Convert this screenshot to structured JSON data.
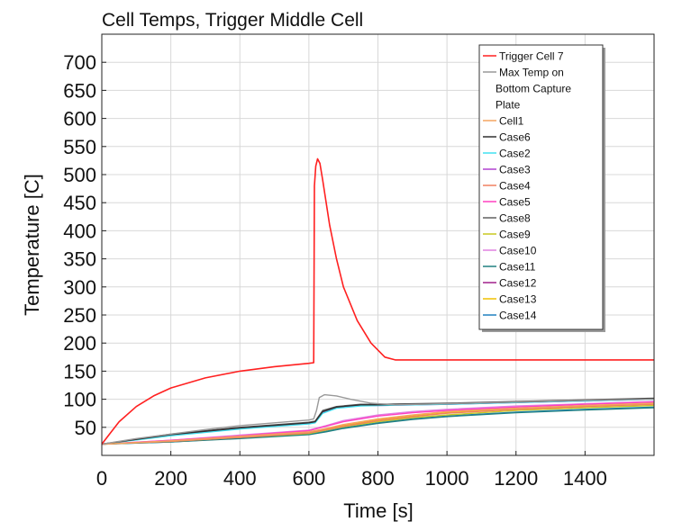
{
  "chart_data": {
    "type": "line",
    "title": "Cell Temps, Trigger Middle Cell",
    "xlabel": "Time [s]",
    "ylabel": "Temperature [C]",
    "xlim": [
      0,
      1600
    ],
    "ylim": [
      0,
      750
    ],
    "xticks": [
      0,
      200,
      400,
      600,
      800,
      1000,
      1200,
      1400
    ],
    "xtick_labels": [
      "0",
      "200",
      "400",
      "600",
      "800",
      "1000",
      "1200",
      "1400"
    ],
    "yticks": [
      50,
      100,
      150,
      200,
      250,
      300,
      350,
      400,
      450,
      500,
      550,
      600,
      650,
      700
    ],
    "ytick_labels": [
      "50",
      "100",
      "150",
      "200",
      "250",
      "300",
      "350",
      "400",
      "450",
      "500",
      "550",
      "600",
      "650",
      "700"
    ],
    "grid": true,
    "legend_position": "top-right",
    "series": [
      {
        "name": "Trigger Cell 7",
        "color": "#ff2020",
        "x": [
          0,
          25,
          50,
          100,
          150,
          200,
          300,
          400,
          500,
          600,
          614,
          616,
          620,
          625,
          632,
          640,
          660,
          680,
          700,
          740,
          780,
          820,
          850,
          900,
          1000,
          1200,
          1400,
          1600
        ],
        "y": [
          20,
          40,
          60,
          87,
          106,
          120,
          138,
          150,
          158,
          164,
          165,
          480,
          515,
          528,
          520,
          490,
          410,
          350,
          300,
          240,
          200,
          175,
          170,
          170,
          170,
          170,
          170,
          170
        ]
      },
      {
        "name": "Max Temp on Bottom Capture Plate",
        "color": "#999999",
        "x": [
          0,
          100,
          200,
          300,
          400,
          500,
          600,
          614,
          622,
          630,
          645,
          680,
          720,
          780,
          850,
          1000,
          1200,
          1400,
          1600
        ],
        "y": [
          20,
          30,
          38,
          46,
          53,
          58,
          63,
          65,
          80,
          103,
          108,
          106,
          100,
          93,
          90,
          92,
          95,
          98,
          100
        ]
      },
      {
        "name": "Cell1",
        "color": "#f4a460",
        "x": [
          0,
          200,
          400,
          600,
          650,
          700,
          800,
          900,
          1000,
          1200,
          1400,
          1600
        ],
        "y": [
          20,
          26,
          34,
          42,
          48,
          55,
          65,
          72,
          78,
          84,
          89,
          93
        ]
      },
      {
        "name": "Case6",
        "color": "#303030",
        "x": [
          0,
          200,
          400,
          600,
          618,
          640,
          680,
          750,
          800,
          1000,
          1200,
          1400,
          1600
        ],
        "y": [
          20,
          37,
          49,
          58,
          60,
          78,
          86,
          90,
          90,
          92,
          95,
          98,
          101
        ]
      },
      {
        "name": "Case2",
        "color": "#40e0f0",
        "x": [
          0,
          200,
          400,
          600,
          618,
          640,
          680,
          750,
          800,
          1000,
          1200,
          1400,
          1600
        ],
        "y": [
          20,
          35,
          47,
          56,
          58,
          75,
          84,
          88,
          89,
          91,
          94,
          97,
          100
        ]
      },
      {
        "name": "Case3",
        "color": "#b040d0",
        "x": [
          0,
          200,
          400,
          600,
          618,
          640,
          680,
          750,
          800,
          1000,
          1200,
          1400,
          1600
        ],
        "y": [
          20,
          36,
          48,
          57,
          59,
          76,
          85,
          89,
          89,
          91,
          94,
          97,
          100
        ]
      },
      {
        "name": "Case4",
        "color": "#f08060",
        "x": [
          0,
          200,
          400,
          600,
          650,
          700,
          800,
          900,
          1000,
          1200,
          1400,
          1600
        ],
        "y": [
          20,
          25,
          32,
          40,
          46,
          52,
          62,
          69,
          75,
          82,
          87,
          91
        ]
      },
      {
        "name": "Case5",
        "color": "#ff40c0",
        "x": [
          0,
          200,
          400,
          600,
          650,
          700,
          800,
          900,
          1000,
          1200,
          1400,
          1600
        ],
        "y": [
          20,
          27,
          35,
          44,
          52,
          60,
          70,
          76,
          80,
          86,
          91,
          95
        ]
      },
      {
        "name": "Case8",
        "color": "#606060",
        "x": [
          0,
          200,
          400,
          600,
          618,
          640,
          680,
          750,
          800,
          1000,
          1200,
          1400,
          1600
        ],
        "y": [
          20,
          38,
          50,
          59,
          61,
          80,
          87,
          91,
          91,
          93,
          96,
          99,
          102
        ]
      },
      {
        "name": "Case9",
        "color": "#c8c820",
        "x": [
          0,
          200,
          400,
          600,
          650,
          700,
          800,
          900,
          1000,
          1200,
          1400,
          1600
        ],
        "y": [
          20,
          25,
          32,
          39,
          45,
          51,
          60,
          67,
          72,
          80,
          85,
          89
        ]
      },
      {
        "name": "Case10",
        "color": "#e080e0",
        "x": [
          0,
          200,
          400,
          600,
          650,
          700,
          800,
          900,
          1000,
          1200,
          1400,
          1600
        ],
        "y": [
          20,
          27,
          36,
          45,
          53,
          62,
          72,
          78,
          82,
          88,
          92,
          96
        ]
      },
      {
        "name": "Case11",
        "color": "#208080",
        "x": [
          0,
          200,
          400,
          600,
          650,
          700,
          800,
          900,
          1000,
          1200,
          1400,
          1600
        ],
        "y": [
          20,
          24,
          30,
          37,
          42,
          48,
          57,
          64,
          69,
          76,
          81,
          85
        ]
      },
      {
        "name": "Case12",
        "color": "#a0208a",
        "x": [
          0,
          200,
          400,
          600,
          618,
          640,
          680,
          750,
          800,
          1000,
          1200,
          1400,
          1600
        ],
        "y": [
          20,
          36,
          48,
          57,
          59,
          77,
          85,
          89,
          90,
          92,
          95,
          98,
          101
        ]
      },
      {
        "name": "Case13",
        "color": "#f0c000",
        "x": [
          0,
          200,
          400,
          600,
          650,
          700,
          800,
          900,
          1000,
          1200,
          1400,
          1600
        ],
        "y": [
          20,
          25,
          33,
          41,
          47,
          53,
          63,
          70,
          76,
          83,
          88,
          92
        ]
      },
      {
        "name": "Case14",
        "color": "#2080c0",
        "x": [
          0,
          200,
          400,
          600,
          650,
          700,
          800,
          900,
          1000,
          1200,
          1400,
          1600
        ],
        "y": [
          20,
          24,
          31,
          38,
          43,
          49,
          58,
          65,
          70,
          77,
          82,
          86
        ]
      }
    ]
  }
}
